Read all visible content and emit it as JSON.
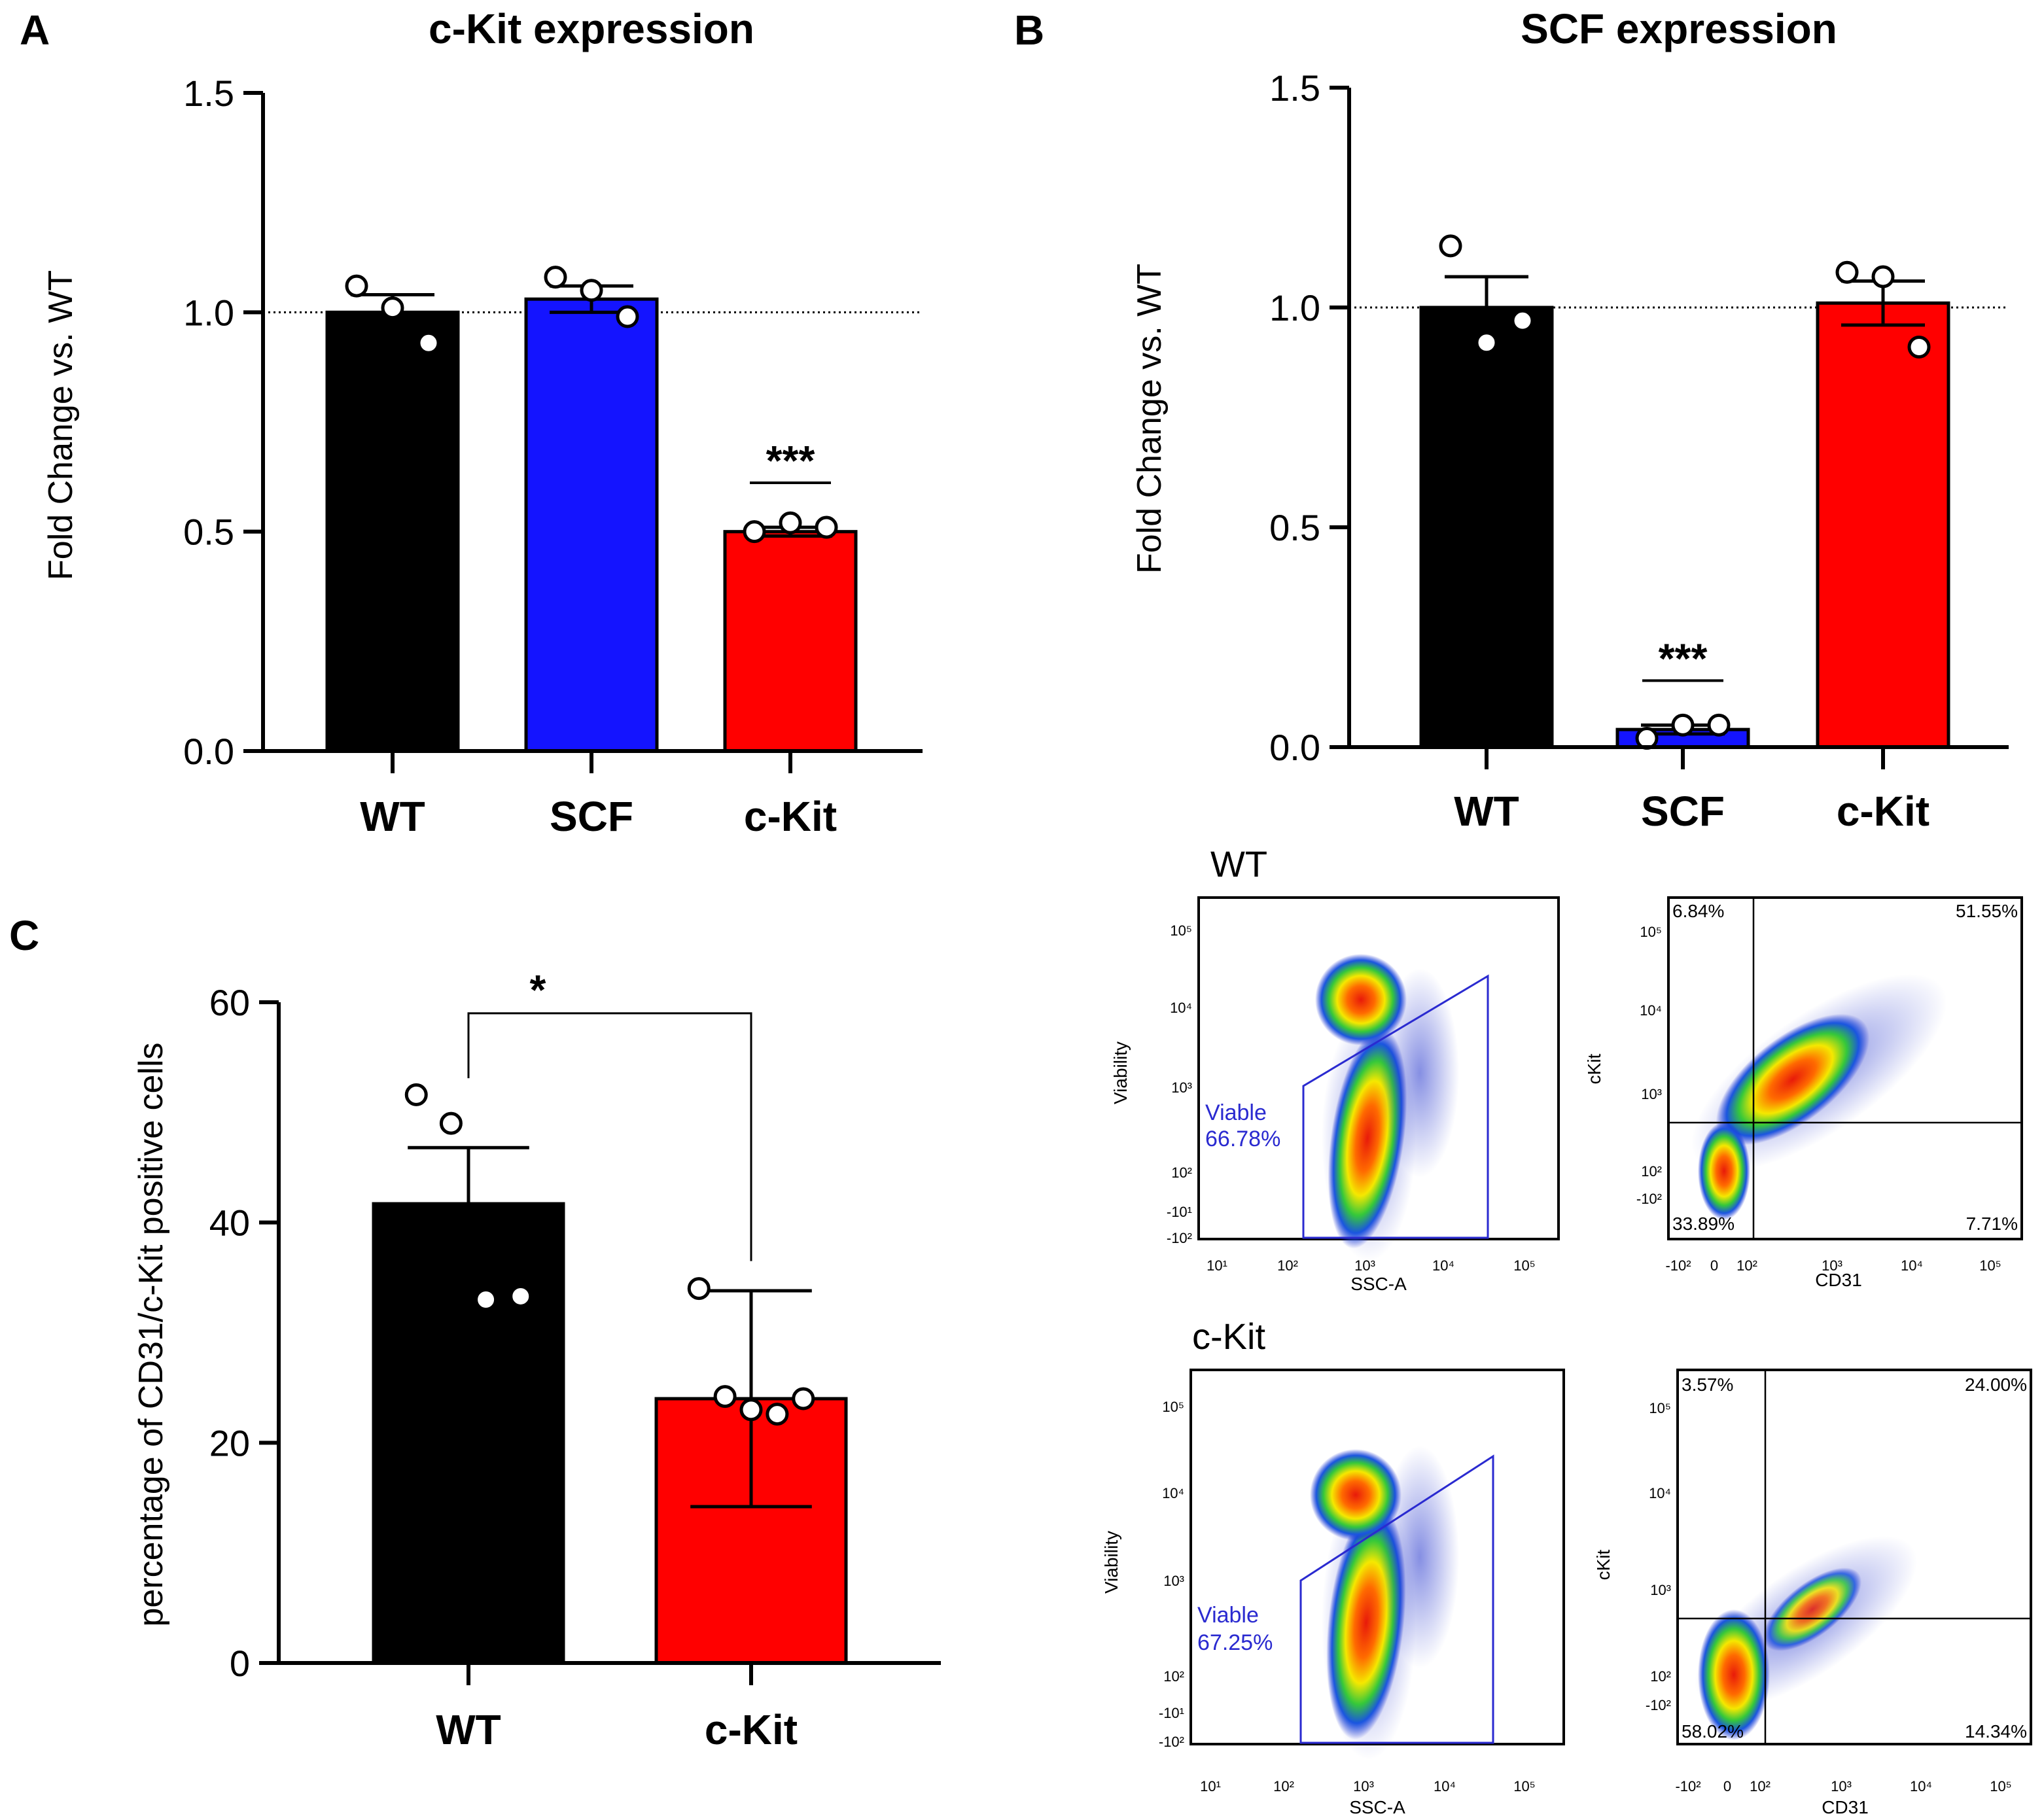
{
  "panels": {
    "A": {
      "letter": "A"
    },
    "B": {
      "letter": "B"
    },
    "C": {
      "letter": "C"
    }
  },
  "chart_data": [
    {
      "id": "A",
      "type": "bar",
      "title": "c-Kit expression",
      "ylabel": "Fold Change vs. WT",
      "xlabel": "",
      "ylim": [
        0,
        1.5
      ],
      "yticks": [
        0,
        0.5,
        1.0,
        1.5
      ],
      "ytick_labels": [
        "0.0",
        "0.5",
        "1.0",
        "1.5"
      ],
      "categories": [
        "WT",
        "SCF",
        "c-Kit"
      ],
      "values": [
        1.0,
        1.03,
        0.5
      ],
      "sem": [
        0.04,
        0.03,
        0.01
      ],
      "points": [
        [
          1.06,
          1.01,
          0.93
        ],
        [
          1.08,
          1.05,
          0.99
        ],
        [
          0.5,
          0.52,
          0.51
        ]
      ],
      "colors": [
        "#000000",
        "#1414ff",
        "#ff0000"
      ],
      "reference_line": 1.0,
      "significance": [
        {
          "category": "c-Kit",
          "label": "***"
        }
      ]
    },
    {
      "id": "B",
      "type": "bar",
      "title": "SCF expression",
      "ylabel": "Fold Change vs. WT",
      "xlabel": "",
      "ylim": [
        0,
        1.5
      ],
      "yticks": [
        0,
        0.5,
        1.0,
        1.5
      ],
      "ytick_labels": [
        "0.0",
        "0.5",
        "1.0",
        "1.5"
      ],
      "categories": [
        "WT",
        "SCF",
        "c-Kit"
      ],
      "values": [
        1.0,
        0.04,
        1.01
      ],
      "sem": [
        0.07,
        0.01,
        0.05
      ],
      "points": [
        [
          1.14,
          0.92,
          0.97
        ],
        [
          0.02,
          0.05,
          0.05
        ],
        [
          1.08,
          1.07,
          0.91
        ]
      ],
      "colors": [
        "#000000",
        "#1414ff",
        "#ff0000"
      ],
      "reference_line": 1.0,
      "significance": [
        {
          "category": "SCF",
          "label": "***"
        }
      ]
    },
    {
      "id": "C",
      "type": "bar",
      "title": "",
      "ylabel": "percentage of CD31/c-Kit positive cells",
      "xlabel": "",
      "ylim": [
        0,
        60
      ],
      "yticks": [
        0,
        20,
        40,
        60
      ],
      "ytick_labels": [
        "0",
        "20",
        "40",
        "60"
      ],
      "categories": [
        "WT",
        "c-Kit"
      ],
      "values": [
        41.7,
        24.0
      ],
      "sem": [
        5.1,
        9.8
      ],
      "points": [
        [
          51.6,
          49.0,
          33.0,
          33.3
        ],
        [
          34.0,
          24.2,
          23.0,
          22.6,
          24.0
        ]
      ],
      "colors": [
        "#000000",
        "#ff0000"
      ],
      "significance": [
        {
          "between": [
            "WT",
            "c-Kit"
          ],
          "label": "*"
        }
      ]
    }
  ],
  "flow": {
    "wt_label": "WT",
    "ckit_label": "c-Kit",
    "viability_axis": "Viability",
    "ssc_axis": "SSC-A",
    "ckit_axis": "cKit",
    "cd31_axis": "CD31",
    "log_ticks": [
      "10¹",
      "10²",
      "10³",
      "10⁴",
      "10⁵"
    ],
    "y_ticks_via": [
      "-10²",
      "-10¹",
      "10²",
      "10³",
      "10⁴",
      "10⁵"
    ],
    "y_ticks_ck": [
      "-10²",
      "10²",
      "10³",
      "10⁴",
      "10⁵"
    ],
    "x_ticks_cd31": [
      "-10²",
      "0",
      "10²",
      "10³",
      "10⁴",
      "10⁵"
    ],
    "wt": {
      "viable_word": "Viable",
      "viable_pct": "66.78%",
      "q_ul": "6.84%",
      "q_ur": "51.55%",
      "q_ll": "33.89%",
      "q_lr": "7.71%"
    },
    "ckit": {
      "viable_word": "Viable",
      "viable_pct": "67.25%",
      "q_ul": "3.57%",
      "q_ur": "24.00%",
      "q_ll": "58.02%",
      "q_lr": "14.34%"
    }
  }
}
